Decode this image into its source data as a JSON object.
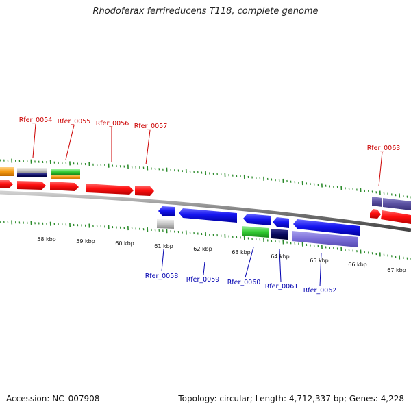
{
  "title": "Rhodoferax ferrireducens T118, complete genome",
  "footer": {
    "accession": "Accession: NC_007908",
    "topology": "Topology: circular; Length: 4,712,337 bp; Genes: 4,228"
  },
  "gene_labels_top": [
    "Rfer_0054",
    "Rfer_0055",
    "Rfer_0056",
    "Rfer_0057",
    "Rfer_0063"
  ],
  "gene_labels_bottom": [
    "Rfer_0058",
    "Rfer_0059",
    "Rfer_0060",
    "Rfer_0061",
    "Rfer_0062"
  ],
  "kbp_labels": [
    "58 kbp",
    "59 kbp",
    "60 kbp",
    "61 kbp",
    "62 kbp",
    "63 kbp",
    "64 kbp",
    "65 kbp",
    "66 kbp",
    "67 kbp"
  ],
  "colors": {
    "backbone": "#888888",
    "forward_gene": "#ff1111",
    "reverse_gene": "#1111ee",
    "tick": "#2a8a2a",
    "top_label": "#cc0000",
    "bottom_label": "#0000b0"
  }
}
